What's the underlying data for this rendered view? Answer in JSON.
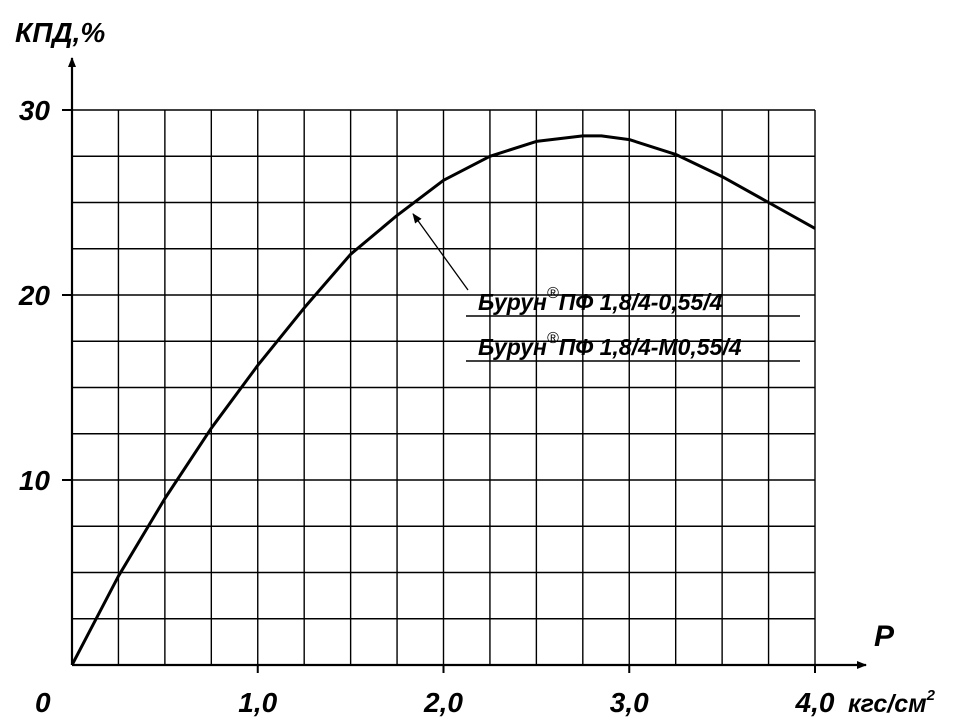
{
  "chart_data": {
    "type": "line",
    "ylabel": "КПД,%",
    "xlabel": "P",
    "x_unit_base": "кгс/см",
    "x_unit_sup": "2",
    "origin_label": "0",
    "x_ticks": [
      {
        "value": 1.0,
        "label": "1,0"
      },
      {
        "value": 2.0,
        "label": "2,0"
      },
      {
        "value": 3.0,
        "label": "3,0"
      },
      {
        "value": 4.0,
        "label": "4,0"
      }
    ],
    "y_ticks": [
      {
        "value": 10,
        "label": "10"
      },
      {
        "value": 20,
        "label": "20"
      },
      {
        "value": 30,
        "label": "30"
      }
    ],
    "xlim": [
      0,
      4.0
    ],
    "ylim": [
      0,
      30
    ],
    "grid": true,
    "grid_step_x": 0.25,
    "grid_step_y": 2.5,
    "series": [
      {
        "x": [
          0,
          0.25,
          0.5,
          0.75,
          1.0,
          1.25,
          1.5,
          1.75,
          2.0,
          2.25,
          2.5,
          2.75,
          2.85,
          3.0,
          3.25,
          3.5,
          3.75,
          4.0
        ],
        "y": [
          0,
          4.8,
          9.0,
          12.8,
          16.2,
          19.3,
          22.2,
          24.3,
          26.2,
          27.5,
          28.3,
          28.6,
          28.6,
          28.4,
          27.6,
          26.4,
          25.0,
          23.6
        ],
        "color": "#000000"
      }
    ],
    "annotation": {
      "labels": [
        {
          "brand": "Бурун",
          "mark": "®",
          "model": "ПФ 1,8/4-0,55/4"
        },
        {
          "brand": "Бурун",
          "mark": "®",
          "model": "ПФ 1,8/4-М0,55/4"
        }
      ],
      "points_to": {
        "x": 1.82,
        "y": 24.6
      }
    }
  }
}
